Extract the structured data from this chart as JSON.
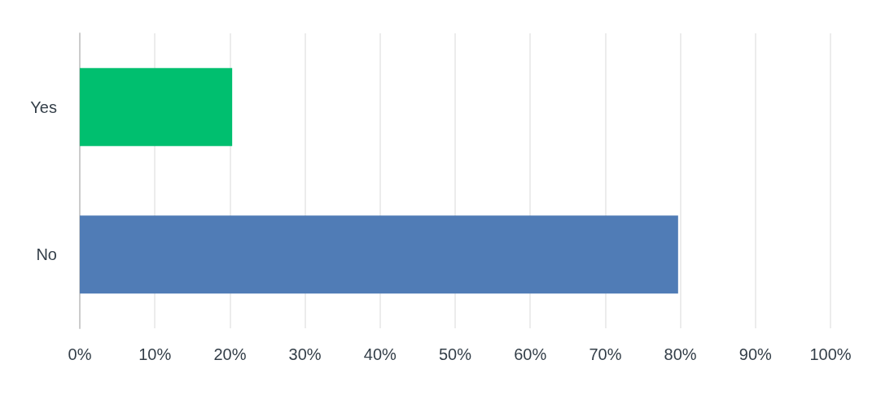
{
  "chart_data": {
    "type": "bar",
    "orientation": "horizontal",
    "categories": [
      "Yes",
      "No"
    ],
    "values": [
      20.3,
      79.7
    ],
    "colors": [
      "#00bf6f",
      "#507cb6"
    ],
    "xlim": [
      0,
      100
    ],
    "xticks": [
      {
        "value": 0,
        "label": "0%"
      },
      {
        "value": 10,
        "label": "10%"
      },
      {
        "value": 20,
        "label": "20%"
      },
      {
        "value": 30,
        "label": "30%"
      },
      {
        "value": 40,
        "label": "40%"
      },
      {
        "value": 50,
        "label": "50%"
      },
      {
        "value": 60,
        "label": "60%"
      },
      {
        "value": 70,
        "label": "70%"
      },
      {
        "value": 80,
        "label": "80%"
      },
      {
        "value": 90,
        "label": "90%"
      },
      {
        "value": 100,
        "label": "100%"
      }
    ],
    "grid": "x"
  }
}
